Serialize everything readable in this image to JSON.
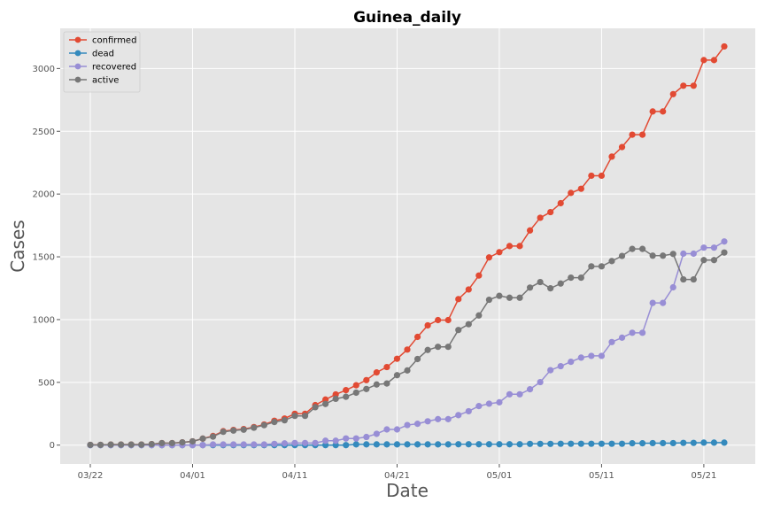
{
  "chart_data": {
    "type": "line",
    "title": "Guinea_daily",
    "xlabel": "Date",
    "ylabel": "Cases",
    "x_tick_labels": [
      "03/22",
      "04/01",
      "04/11",
      "04/21",
      "05/01",
      "05/11",
      "05/21"
    ],
    "y_ticks": [
      0,
      500,
      1000,
      1500,
      2000,
      2500,
      3000
    ],
    "ylim": [
      -150,
      3320
    ],
    "grid": true,
    "legend_position": "top-left",
    "x_start": "2020-03-22",
    "series": [
      {
        "name": "confirmed",
        "color": "#E24A33",
        "values": [
          2,
          2,
          4,
          4,
          4,
          4,
          8,
          16,
          16,
          22,
          30,
          52,
          73,
          111,
          121,
          128,
          144,
          164,
          194,
          212,
          250,
          250,
          319,
          363,
          404,
          438,
          477,
          518,
          579,
          622,
          688,
          761,
          862,
          954,
          996,
          996,
          1163,
          1240,
          1351,
          1495,
          1537,
          1586,
          1586,
          1710,
          1811,
          1856,
          1927,
          2009,
          2042,
          2146,
          2146,
          2298,
          2374,
          2473,
          2473,
          2658,
          2658,
          2796,
          2863,
          2863,
          3067,
          3067,
          3176
        ]
      },
      {
        "name": "dead",
        "color": "#348ABD",
        "values": [
          0,
          0,
          0,
          0,
          0,
          0,
          0,
          0,
          0,
          0,
          0,
          0,
          0,
          0,
          0,
          0,
          0,
          0,
          0,
          0,
          0,
          0,
          0,
          0,
          0,
          0,
          6,
          6,
          6,
          6,
          6,
          6,
          6,
          6,
          6,
          6,
          7,
          7,
          7,
          7,
          7,
          7,
          7,
          10,
          10,
          10,
          11,
          11,
          11,
          11,
          11,
          11,
          11,
          15,
          15,
          16,
          16,
          16,
          18,
          18,
          20,
          20,
          20
        ]
      },
      {
        "name": "recovered",
        "color": "#988ED5",
        "values": [
          0,
          0,
          0,
          0,
          0,
          0,
          0,
          0,
          0,
          0,
          0,
          0,
          5,
          5,
          5,
          5,
          5,
          5,
          10,
          14,
          17,
          17,
          17,
          35,
          35,
          53,
          53,
          65,
          90,
          125,
          125,
          160,
          170,
          190,
          207,
          207,
          239,
          270,
          311,
          330,
          341,
          405,
          405,
          445,
          502,
          597,
          629,
          664,
          697,
          711,
          711,
          821,
          856,
          895,
          895,
          1133,
          1133,
          1257,
          1525,
          1525,
          1573,
          1573,
          1622
        ]
      },
      {
        "name": "active",
        "color": "#777777",
        "values": [
          2,
          2,
          4,
          4,
          4,
          4,
          8,
          16,
          16,
          22,
          30,
          52,
          68,
          106,
          116,
          123,
          139,
          159,
          184,
          198,
          233,
          233,
          302,
          328,
          369,
          385,
          418,
          447,
          483,
          491,
          557,
          595,
          686,
          758,
          783,
          783,
          917,
          963,
          1033,
          1158,
          1189,
          1174,
          1174,
          1255,
          1299,
          1249,
          1287,
          1334,
          1334,
          1424,
          1424,
          1466,
          1507,
          1563,
          1563,
          1509,
          1509,
          1523,
          1320,
          1320,
          1474,
          1474,
          1534
        ]
      }
    ]
  }
}
